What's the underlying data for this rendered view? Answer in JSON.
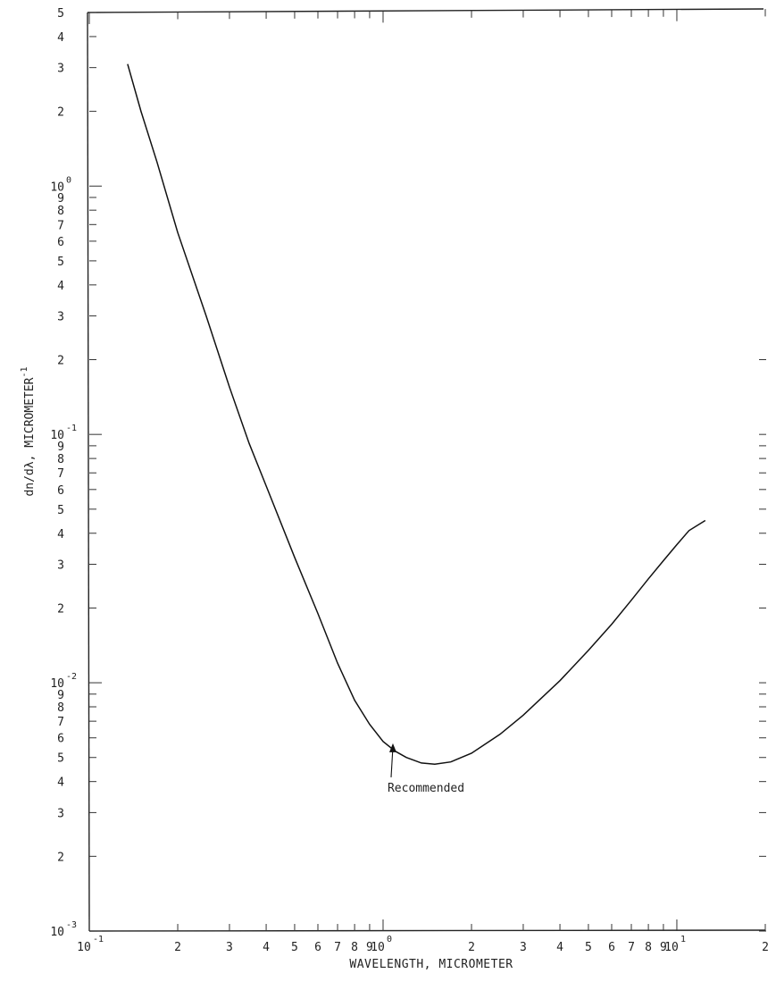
{
  "chart_data": {
    "type": "line",
    "title": "",
    "xlabel": "WAVELENGTH, MICROMETER",
    "ylabel": "dn/dλ, MICROMETER",
    "ylabel_exponent": "-1",
    "x_scale": "log",
    "y_scale": "log",
    "xlim": [
      0.1,
      20
    ],
    "ylim": [
      0.001,
      5
    ],
    "grid": false,
    "legend": "none",
    "x_decade_labels": [
      {
        "value": 0.1,
        "mantissa": "10",
        "exponent": "-1"
      },
      {
        "value": 1,
        "mantissa": "10",
        "exponent": "0"
      },
      {
        "value": 10,
        "mantissa": "10",
        "exponent": "1"
      }
    ],
    "x_minor_labels": [
      {
        "value": 0.2,
        "label": "2"
      },
      {
        "value": 0.3,
        "label": "3"
      },
      {
        "value": 0.4,
        "label": "4"
      },
      {
        "value": 0.5,
        "label": "5"
      },
      {
        "value": 0.6,
        "label": "6"
      },
      {
        "value": 0.7,
        "label": "7"
      },
      {
        "value": 0.8,
        "label": "8"
      },
      {
        "value": 0.9,
        "label": "9"
      },
      {
        "value": 2,
        "label": "2"
      },
      {
        "value": 3,
        "label": "3"
      },
      {
        "value": 4,
        "label": "4"
      },
      {
        "value": 5,
        "label": "5"
      },
      {
        "value": 6,
        "label": "6"
      },
      {
        "value": 7,
        "label": "7"
      },
      {
        "value": 8,
        "label": "8"
      },
      {
        "value": 9,
        "label": "9"
      },
      {
        "value": 20,
        "label": "2"
      }
    ],
    "y_decade_labels": [
      {
        "value": 0.001,
        "mantissa": "10",
        "exponent": "-3"
      },
      {
        "value": 0.01,
        "mantissa": "10",
        "exponent": "-2"
      },
      {
        "value": 0.1,
        "mantissa": "10",
        "exponent": "-1"
      },
      {
        "value": 1,
        "mantissa": "10",
        "exponent": "0"
      }
    ],
    "y_minor_labels": [
      {
        "value": 0.002,
        "label": "2"
      },
      {
        "value": 0.003,
        "label": "3"
      },
      {
        "value": 0.004,
        "label": "4"
      },
      {
        "value": 0.005,
        "label": "5"
      },
      {
        "value": 0.006,
        "label": "6"
      },
      {
        "value": 0.007,
        "label": "7"
      },
      {
        "value": 0.008,
        "label": "8"
      },
      {
        "value": 0.009,
        "label": "9"
      },
      {
        "value": 0.02,
        "label": "2"
      },
      {
        "value": 0.03,
        "label": "3"
      },
      {
        "value": 0.04,
        "label": "4"
      },
      {
        "value": 0.05,
        "label": "5"
      },
      {
        "value": 0.06,
        "label": "6"
      },
      {
        "value": 0.07,
        "label": "7"
      },
      {
        "value": 0.08,
        "label": "8"
      },
      {
        "value": 0.09,
        "label": "9"
      },
      {
        "value": 0.2,
        "label": "2"
      },
      {
        "value": 0.3,
        "label": "3"
      },
      {
        "value": 0.4,
        "label": "4"
      },
      {
        "value": 0.5,
        "label": "5"
      },
      {
        "value": 0.6,
        "label": "6"
      },
      {
        "value": 0.7,
        "label": "7"
      },
      {
        "value": 0.8,
        "label": "8"
      },
      {
        "value": 0.9,
        "label": "9"
      },
      {
        "value": 2,
        "label": "2"
      },
      {
        "value": 3,
        "label": "3"
      },
      {
        "value": 4,
        "label": "4"
      },
      {
        "value": 5,
        "label": "5"
      }
    ],
    "series": [
      {
        "x": [
          0.135,
          0.15,
          0.17,
          0.2,
          0.25,
          0.3,
          0.35,
          0.4,
          0.5,
          0.6,
          0.7,
          0.8,
          0.9,
          1.0,
          1.1,
          1.2,
          1.35,
          1.5,
          1.7,
          2.0,
          2.5,
          3.0,
          4.0,
          5.0,
          6.0,
          7.0,
          8.0,
          9.0,
          10.0,
          11.0,
          12.5
        ],
        "y": [
          3.1,
          2.0,
          1.25,
          0.65,
          0.3,
          0.155,
          0.092,
          0.062,
          0.032,
          0.019,
          0.012,
          0.0085,
          0.0068,
          0.0058,
          0.0053,
          0.005,
          0.00475,
          0.0047,
          0.0048,
          0.0052,
          0.0062,
          0.0074,
          0.0102,
          0.0135,
          0.0172,
          0.0215,
          0.0262,
          0.031,
          0.036,
          0.041,
          0.045
        ]
      }
    ],
    "annotations": [
      {
        "text": "Recommended",
        "x": 1.08,
        "y": 0.0057
      }
    ]
  }
}
